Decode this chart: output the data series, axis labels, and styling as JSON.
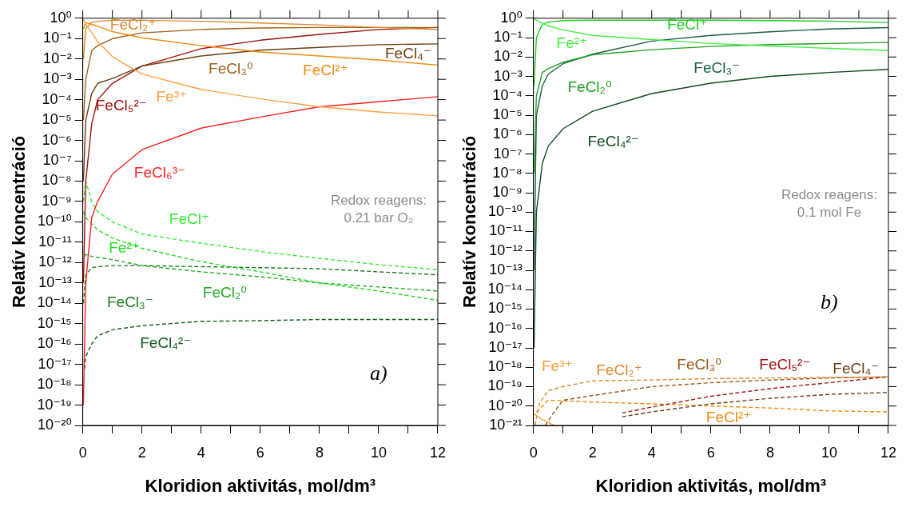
{
  "chart_data": [
    {
      "type": "line",
      "xlabel": "Kloridion aktivitás, mol/dm³",
      "ylabel": "Relatív koncentráció",
      "log": "y",
      "xlim": [
        0,
        12
      ],
      "ylim": [
        1e-20,
        1
      ],
      "xticks": [
        0,
        {
          "value": 1,
          "label": null
        },
        2,
        {
          "value": 3,
          "label": null
        },
        4,
        {
          "value": 5,
          "label": null
        },
        6,
        {
          "value": 7,
          "label": null
        },
        8,
        {
          "value": 9,
          "label": null
        },
        10,
        {
          "value": 11,
          "label": null
        },
        12
      ],
      "yticks": [
        {
          "value": 1e-20,
          "label": "10⁻²⁰"
        },
        {
          "value": 1e-19,
          "label": "10⁻¹⁹"
        },
        {
          "value": 1e-18,
          "label": "10⁻¹⁸"
        },
        {
          "value": 1e-17,
          "label": "10⁻¹⁷"
        },
        {
          "value": 1e-16,
          "label": "10⁻¹⁶"
        },
        {
          "value": 1e-15,
          "label": "10⁻¹⁵"
        },
        {
          "value": 1e-14,
          "label": "10⁻¹⁴"
        },
        {
          "value": 1e-13,
          "label": "10⁻¹³"
        },
        {
          "value": 1e-12,
          "label": "10⁻¹²"
        },
        {
          "value": 1e-11,
          "label": "10⁻¹¹"
        },
        {
          "value": 1e-10,
          "label": "10⁻¹⁰"
        },
        {
          "value": 1e-09,
          "label": "10⁻⁹"
        },
        {
          "value": 1e-08,
          "label": "10⁻⁸"
        },
        {
          "value": 1e-07,
          "label": "10⁻⁷"
        },
        {
          "value": 1e-06,
          "label": "10⁻⁶"
        },
        {
          "value": 1e-05,
          "label": "10⁻⁵"
        },
        {
          "value": 0.0001,
          "label": "10⁻⁴"
        },
        {
          "value": 0.001,
          "label": "10⁻³"
        },
        {
          "value": 0.01,
          "label": "10⁻²"
        },
        {
          "value": 0.1,
          "label": "10⁻¹"
        },
        {
          "value": 1,
          "label": "10⁰"
        }
      ],
      "x": [
        0.02,
        0.1,
        0.3,
        0.5,
        1,
        2,
        4,
        6,
        8,
        10,
        12
      ],
      "annotations": [
        "Redox reagens: 0.21 bar O₂",
        "a)"
      ],
      "series": [
        {
          "name": "Fe³⁺",
          "color": "#ffa040",
          "values": [
            0.89,
            0.5,
            0.2,
            0.071,
            0.013,
            0.0018,
            0.00032,
            0.00011,
            4.5e-05,
            2.5e-05,
            1.6e-05
          ]
        },
        {
          "name": "FeCl²⁺",
          "color": "#f08a10",
          "values": [
            0.3,
            0.6,
            0.5,
            0.4,
            0.22,
            0.11,
            0.045,
            0.022,
            0.014,
            0.0089,
            0.005
          ]
        },
        {
          "name": "FeCl₂⁺",
          "color": "#d98a30",
          "values": [
            0.01,
            0.32,
            0.63,
            0.71,
            0.79,
            0.79,
            0.71,
            0.58,
            0.47,
            0.35,
            0.28
          ]
        },
        {
          "name": "FeCl₃⁰",
          "color": "#a0601a",
          "values": [
            1e-05,
            0.001,
            0.025,
            0.045,
            0.1,
            0.19,
            0.28,
            0.33,
            0.35,
            0.35,
            0.35
          ]
        },
        {
          "name": "FeCl₄⁻",
          "color": "#6b3e10",
          "values": [
            1e-08,
            1e-05,
            0.0002,
            0.00063,
            0.0011,
            0.0045,
            0.014,
            0.027,
            0.037,
            0.05,
            0.055
          ]
        },
        {
          "name": "FeCl₅²⁻",
          "color": "#a01010",
          "values": [
            1e-13,
            1e-08,
            6.3e-06,
            0.0001,
            0.00063,
            0.0045,
            0.032,
            0.083,
            0.16,
            0.28,
            0.35
          ]
        },
        {
          "name": "FeCl₆³⁻",
          "color": "#ff2020",
          "values": [
            1e-19,
            1e-13,
            1.6e-10,
            1e-09,
            2.2e-08,
            3.5e-07,
            4e-06,
            1.4e-05,
            4.5e-05,
            7.9e-05,
            0.00014
          ]
        },
        {
          "name": "FeCl⁺",
          "color": "#33ee33",
          "line_style": "dashed",
          "values": [
            1e-09,
            1e-08,
            1e-09,
            3.2e-10,
            1e-10,
            2.5e-11,
            8.9e-12,
            3.5e-12,
            1.6e-12,
            7.9e-13,
            4.5e-13
          ]
        },
        {
          "name": "Fe²⁺",
          "color": "#22dd22",
          "line_style": "dashed",
          "values": [
            3.2e-10,
            1.6e-10,
            7.9e-11,
            4e-11,
            1.6e-11,
            5e-12,
            1.1e-12,
            3.5e-13,
            1e-13,
            4e-14,
            1.4e-14
          ]
        },
        {
          "name": "FeCl₂⁰",
          "color": "#22aa22",
          "line_style": "dashed",
          "x": [
            0.08,
            0.1,
            0.3,
            0.5,
            1,
            2,
            4,
            6,
            8,
            10,
            12
          ],
          "values": [
            2e-12,
            2.5e-12,
            2e-12,
            1.8e-12,
            1.4e-12,
            7.1e-13,
            3.5e-13,
            2e-13,
            1e-13,
            6.3e-14,
            4e-14
          ]
        },
        {
          "name": "FeCl₃⁻",
          "color": "#1a7a1a",
          "line_style": "dashed",
          "values": [
            1e-14,
            2.5e-13,
            5.6e-13,
            6.3e-13,
            7.1e-13,
            7.1e-13,
            6.3e-13,
            5.6e-13,
            5e-13,
            3.5e-13,
            2.5e-13
          ]
        },
        {
          "name": "FeCl₄²⁻",
          "color": "#0f5a1f",
          "line_style": "dashed",
          "x": [
            0.06,
            0.1,
            0.3,
            0.5,
            1,
            2,
            4,
            6,
            8,
            10,
            12
          ],
          "values": [
            6e-18,
            2.5e-17,
            1e-16,
            2.5e-16,
            5e-16,
            7.9e-16,
            1.3e-15,
            1.4e-15,
            1.6e-15,
            1.6e-15,
            1.6e-15
          ]
        }
      ]
    },
    {
      "type": "line",
      "xlabel": "Kloridion aktivitás, mol/dm³",
      "ylabel": "Relatív koncentráció",
      "log": "y",
      "xlim": [
        0,
        12
      ],
      "ylim": [
        1e-21,
        1
      ],
      "xticks": [
        0,
        {
          "value": 1,
          "label": null
        },
        2,
        {
          "value": 3,
          "label": null
        },
        4,
        {
          "value": 5,
          "label": null
        },
        6,
        {
          "value": 7,
          "label": null
        },
        8,
        {
          "value": 9,
          "label": null
        },
        10,
        {
          "value": 11,
          "label": null
        },
        12
      ],
      "yticks": [
        {
          "value": 1e-21,
          "label": "10⁻²¹"
        },
        {
          "value": 1e-20,
          "label": "10⁻²⁰"
        },
        {
          "value": 1e-19,
          "label": "10⁻¹⁹"
        },
        {
          "value": 1e-18,
          "label": "10⁻¹⁸"
        },
        {
          "value": 1e-17,
          "label": "10⁻¹⁷"
        },
        {
          "value": 1e-16,
          "label": "10⁻¹⁶"
        },
        {
          "value": 1e-15,
          "label": "10⁻¹⁵"
        },
        {
          "value": 1e-14,
          "label": "10⁻¹⁴"
        },
        {
          "value": 1e-13,
          "label": "10⁻¹³"
        },
        {
          "value": 1e-12,
          "label": "10⁻¹²"
        },
        {
          "value": 1e-11,
          "label": "10⁻¹¹"
        },
        {
          "value": 1e-10,
          "label": "10⁻¹⁰"
        },
        {
          "value": 1e-09,
          "label": "10⁻⁹"
        },
        {
          "value": 1e-08,
          "label": "10⁻⁸"
        },
        {
          "value": 1e-07,
          "label": "10⁻⁷"
        },
        {
          "value": 1e-06,
          "label": "10⁻⁶"
        },
        {
          "value": 1e-05,
          "label": "10⁻⁵"
        },
        {
          "value": 0.0001,
          "label": "10⁻⁴"
        },
        {
          "value": 0.001,
          "label": "10⁻³"
        },
        {
          "value": 0.01,
          "label": "10⁻²"
        },
        {
          "value": 0.1,
          "label": "10⁻¹"
        },
        {
          "value": 1,
          "label": "10⁰"
        }
      ],
      "x": [
        0.02,
        0.1,
        0.3,
        0.5,
        1,
        2,
        4,
        6,
        8,
        10,
        12
      ],
      "annotations": [
        "Redox reagens: 0.1 mol Fe",
        "b)"
      ],
      "series": [
        {
          "name": "Fe²⁺",
          "color": "#44ee44",
          "values": [
            0.95,
            0.8,
            0.56,
            0.4,
            0.25,
            0.13,
            0.079,
            0.05,
            0.037,
            0.028,
            0.022
          ]
        },
        {
          "name": "FeCl⁺",
          "color": "#22cc22",
          "values": [
            0.00032,
            0.1,
            0.5,
            0.63,
            0.76,
            0.79,
            0.79,
            0.79,
            0.76,
            0.71,
            0.59
          ]
        },
        {
          "name": "FeCl₂⁰",
          "color": "#22a022",
          "values": [
            1e-08,
            0.0001,
            0.0016,
            0.0025,
            0.0054,
            0.013,
            0.024,
            0.035,
            0.044,
            0.05,
            0.056
          ]
        },
        {
          "name": "FeCl₃⁻",
          "color": "#1a6040",
          "values": [
            1e-13,
            1e-05,
            0.00032,
            0.0013,
            0.0045,
            0.014,
            0.066,
            0.13,
            0.2,
            0.28,
            0.33
          ]
        },
        {
          "name": "FeCl₄²⁻",
          "color": "#0f4a20",
          "values": [
            1e-17,
            1e-10,
            3.2e-08,
            2.5e-07,
            2e-06,
            1.6e-05,
            0.00013,
            0.00045,
            0.001,
            0.0016,
            0.0023
          ]
        },
        {
          "name": "Fe³⁺",
          "color": "#ffa040",
          "x": [
            0.02,
            0.3,
            0.7
          ],
          "values": [
            4e-21,
            2e-21,
            1e-21
          ]
        },
        {
          "name": "FeCl₂⁺",
          "color": "#d98a30",
          "line_style": "dashed",
          "x": [
            0.05,
            0.2,
            0.5,
            1,
            2,
            4,
            6,
            8,
            10,
            12
          ],
          "values": [
            1e-21,
            1.3e-20,
            6.3e-20,
            1e-19,
            2e-19,
            2.2e-19,
            2.6e-19,
            2.8e-19,
            3e-19,
            3.2e-19
          ]
        },
        {
          "name": "FeCl₃⁰",
          "color": "#9a5a18",
          "line_style": "dashed",
          "x": [
            0.4,
            0.7,
            1,
            2,
            4,
            6,
            8,
            10,
            12
          ],
          "values": [
            1e-21,
            5e-21,
            2e-20,
            3.5e-20,
            1e-19,
            1.6e-19,
            2.2e-19,
            2.8e-19,
            3.2e-19
          ]
        },
        {
          "name": "FeCl₅²⁻",
          "color": "#a01010",
          "line_style": "dashed",
          "x": [
            3,
            4,
            6,
            8,
            10,
            12
          ],
          "values": [
            4.4e-21,
            8.9e-21,
            3.2e-20,
            7.9e-20,
            1.6e-19,
            3.2e-19
          ]
        },
        {
          "name": "FeCl₄⁻",
          "color": "#6b3e10",
          "line_style": "dashed",
          "x": [
            3,
            4,
            6,
            8,
            10,
            12
          ],
          "values": [
            2.8e-21,
            5e-21,
            1.3e-20,
            2.5e-20,
            4e-20,
            5e-20
          ]
        },
        {
          "name": "FeCl²⁺",
          "color": "#f08a10",
          "line_style": "dashed",
          "x": [
            0.1,
            0.5,
            2,
            4,
            6,
            8,
            10,
            12
          ],
          "values": [
            5e-21,
            2e-20,
            1.6e-20,
            1.3e-20,
            1e-20,
            7.9e-21,
            5.6e-21,
            5e-21
          ]
        }
      ]
    }
  ]
}
